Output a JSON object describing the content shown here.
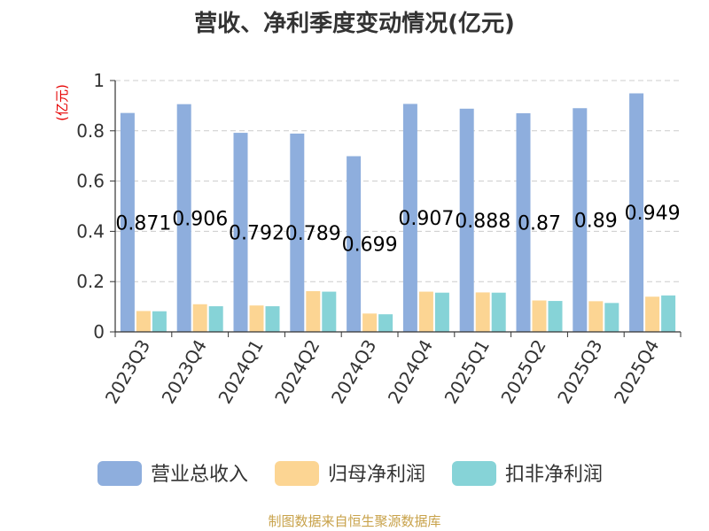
{
  "chart_data": {
    "type": "bar",
    "title": "营收、净利季度变动情况(亿元)",
    "ylabel": "(亿元)",
    "xlabel": "",
    "ylim": [
      0,
      1
    ],
    "yticks": [
      "0",
      "0.2",
      "0.4",
      "0.6",
      "0.8",
      "1"
    ],
    "grid": true,
    "legend_position": "bottom",
    "categories": [
      "2023Q3",
      "2023Q4",
      "2024Q1",
      "2024Q2",
      "2024Q3",
      "2024Q4",
      "2025Q1",
      "2025Q2",
      "2025Q3",
      "2025Q4"
    ],
    "series": [
      {
        "name": "营业总收入",
        "color": "#8eaedd",
        "values": [
          0.871,
          0.906,
          0.792,
          0.789,
          0.699,
          0.907,
          0.888,
          0.87,
          0.89,
          0.949
        ],
        "labels": [
          "0.871",
          "0.906",
          "0.792",
          "0.789",
          "0.699",
          "0.907",
          "0.888",
          "0.87",
          "0.89",
          "0.949"
        ]
      },
      {
        "name": "归母净利润",
        "color": "#fcd593",
        "values": [
          0.083,
          0.11,
          0.105,
          0.162,
          0.073,
          0.16,
          0.157,
          0.125,
          0.122,
          0.14
        ]
      },
      {
        "name": "扣非净利润",
        "color": "#86d3d7",
        "values": [
          0.082,
          0.102,
          0.102,
          0.16,
          0.07,
          0.156,
          0.156,
          0.123,
          0.115,
          0.145
        ]
      }
    ],
    "source": "制图数据来自恒生聚源数据库"
  }
}
